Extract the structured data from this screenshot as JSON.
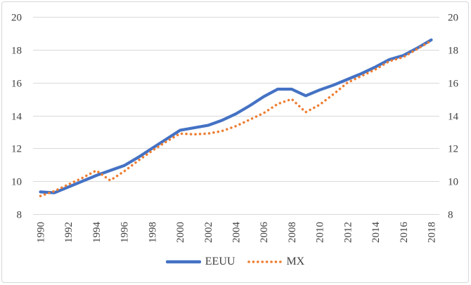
{
  "chart_data": {
    "type": "line",
    "title": "",
    "xlabel": "",
    "ylabel": "",
    "x": [
      1990,
      1991,
      1992,
      1993,
      1994,
      1995,
      1996,
      1997,
      1998,
      1999,
      2000,
      2001,
      2002,
      2003,
      2004,
      2005,
      2006,
      2007,
      2008,
      2009,
      2010,
      2011,
      2012,
      2013,
      2014,
      2015,
      2016,
      2017,
      2018
    ],
    "x_tick_labels": [
      "1990",
      "1992",
      "1994",
      "1996",
      "1998",
      "2000",
      "2002",
      "2004",
      "2006",
      "2008",
      "2010",
      "2012",
      "2014",
      "2016",
      "2018"
    ],
    "y_ticks": [
      8,
      10,
      12,
      14,
      16,
      18,
      20
    ],
    "ylim": [
      8,
      20
    ],
    "grid": "horizontal",
    "legend_position": "bottom",
    "gridline_color": "#D9D9D9",
    "axis_label_color": "#404040",
    "series": [
      {
        "name": "EEUU",
        "color": "#4472C4",
        "style": "solid",
        "values": [
          9.35,
          9.3,
          9.65,
          10.0,
          10.35,
          10.65,
          10.95,
          11.45,
          12.0,
          12.55,
          13.1,
          13.25,
          13.4,
          13.7,
          14.1,
          14.6,
          15.15,
          15.6,
          15.6,
          15.2,
          15.55,
          15.85,
          16.2,
          16.55,
          16.95,
          17.4,
          17.65,
          18.1,
          18.6
        ]
      },
      {
        "name": "MX",
        "color": "#ED7D31",
        "style": "dotted",
        "values": [
          9.1,
          9.4,
          9.8,
          10.2,
          10.65,
          10.05,
          10.6,
          11.25,
          11.85,
          12.4,
          12.9,
          12.85,
          12.9,
          13.05,
          13.35,
          13.75,
          14.15,
          14.7,
          15.0,
          14.2,
          14.65,
          15.3,
          16.0,
          16.4,
          16.8,
          17.3,
          17.55,
          18.05,
          18.55
        ]
      }
    ]
  }
}
